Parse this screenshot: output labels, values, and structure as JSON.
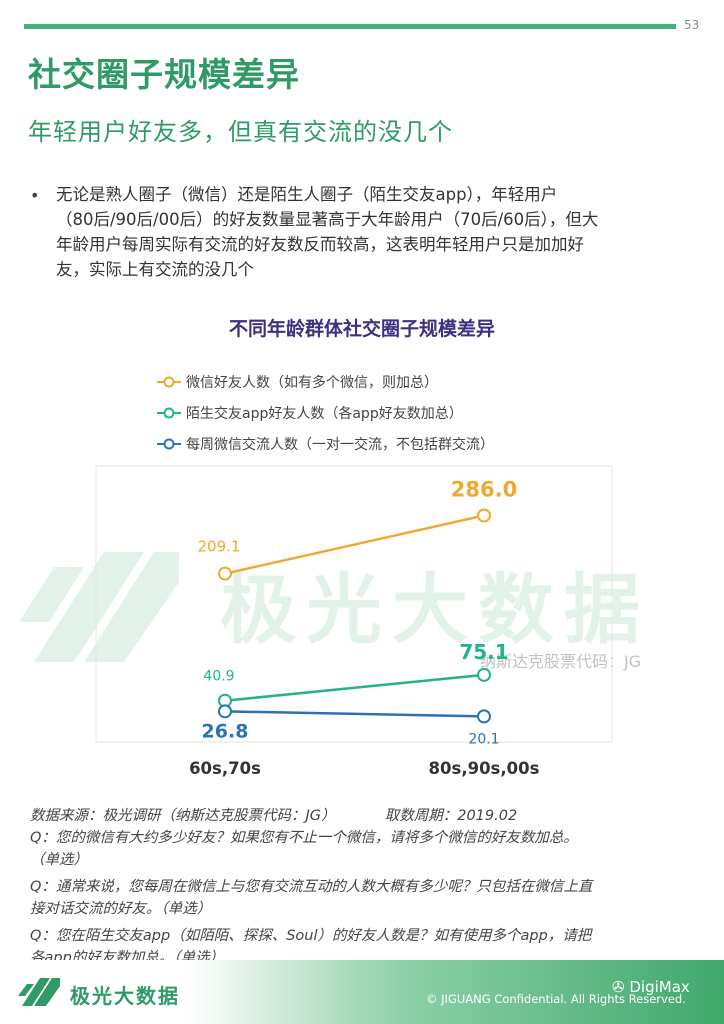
{
  "page_number": "53",
  "title": "社交圈子规模差异",
  "subtitle": "年轻用户好友多，但真有交流的没几个",
  "bullet": "•",
  "body_lines": [
    "无论是熟人圈子（微信）还是陌生人圈子（陌生交友app），年轻用户",
    "（80后/90后/00后）的好友数量显著高于大年龄用户（70后/60后），但大",
    "年龄用户每周实际有交流的好友数反而较高，这表明年轻用户只是加加好",
    "友，实际上有交流的没几个"
  ],
  "chart_data": {
    "type": "line",
    "title": "不同年龄群体社交圈子规模差异",
    "categories": [
      "60s,70s",
      "80s,90s,00s"
    ],
    "series": [
      {
        "name": "微信好友人数（如有多个微信，则加总）",
        "values": [
          209.1,
          286.0
        ],
        "labels": [
          "209.1",
          "286.0"
        ],
        "color": "#f0a830"
      },
      {
        "name": "陌生交友app好友人数（各app好友数加总）",
        "values": [
          40.9,
          75.1
        ],
        "labels": [
          "40.9",
          "75.1"
        ],
        "color": "#20b38c"
      },
      {
        "name": "每周微信交流人数（一对一交流，不包括群交流）",
        "values": [
          26.8,
          20.1
        ],
        "labels": [
          "26.8",
          "20.1"
        ],
        "color": "#2a73b0"
      }
    ],
    "legend_position": "top-left",
    "grid": false
  },
  "source": {
    "line1": "数据来源：极光调研（纳斯达克股票代码：JG）",
    "period": "取数周期：2019.02",
    "q1": "Q：您的微信有大约多少好友？如果您有不止一个微信，请将多个微信的好友数加总。",
    "q1b": "（单选）",
    "q2": "Q：通常来说，您每周在微信上与您有交流互动的人数大概有多少呢？只包括在微信上直",
    "q2b": "接对话交流的好友。（单选）",
    "q3": "Q：您在陌生交友app（如陌陌、探探、Soul）的好友人数是？如有使用多个app，请把",
    "q3b": "各app的好友数加总。（单选）"
  },
  "watermark": {
    "text": "极光大数据",
    "stock": "纳斯达克股票代码：JG"
  },
  "footer": {
    "brand": "极光大数据",
    "copyright": "© JIGUANG Confidential. All Rights Reserved.",
    "badge": "DigiMax"
  }
}
